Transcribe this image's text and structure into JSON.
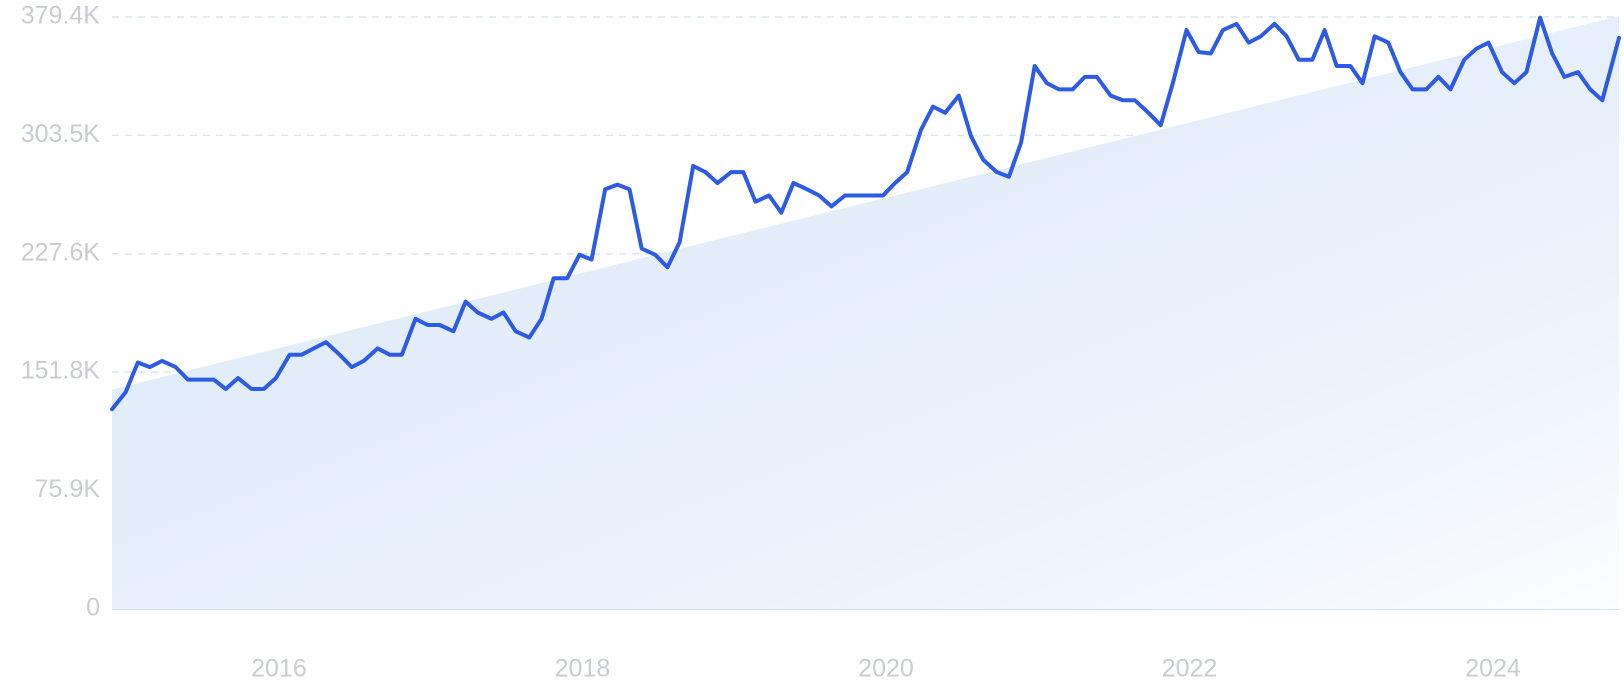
{
  "chart_data": {
    "type": "line",
    "title": "",
    "xlabel": "",
    "ylabel": "",
    "ylim": [
      0,
      379400
    ],
    "xlim": [
      2014.9,
      2024.83
    ],
    "grid": true,
    "y_ticks": [
      {
        "value": 0,
        "label": "0"
      },
      {
        "value": 75900,
        "label": "75.9K"
      },
      {
        "value": 151800,
        "label": "151.8K"
      },
      {
        "value": 227600,
        "label": "227.6K"
      },
      {
        "value": 303500,
        "label": "303.5K"
      },
      {
        "value": 379400,
        "label": "379.4K"
      }
    ],
    "x_ticks": [
      {
        "value": 2016,
        "label": "2016"
      },
      {
        "value": 2018,
        "label": "2018"
      },
      {
        "value": 2020,
        "label": "2020"
      },
      {
        "value": 2022,
        "label": "2022"
      },
      {
        "value": 2024,
        "label": "2024"
      }
    ],
    "trend": {
      "start": [
        2014.9,
        140700
      ],
      "end": [
        2024.83,
        380000
      ]
    },
    "series": [
      {
        "color": "#2d5be3",
        "area_color": "#dbe8f8",
        "points": [
          [
            2014.9,
            128000
          ],
          [
            2014.99,
            139000
          ],
          [
            2015.07,
            158000
          ],
          [
            2015.15,
            155000
          ],
          [
            2015.23,
            159000
          ],
          [
            2015.32,
            155000
          ],
          [
            2015.4,
            147000
          ],
          [
            2015.48,
            147000
          ],
          [
            2015.57,
            147000
          ],
          [
            2015.65,
            141000
          ],
          [
            2015.73,
            148000
          ],
          [
            2015.82,
            141000
          ],
          [
            2015.9,
            141000
          ],
          [
            2015.98,
            148000
          ],
          [
            2016.07,
            163000
          ],
          [
            2016.15,
            163000
          ],
          [
            2016.23,
            167000
          ],
          [
            2016.31,
            171000
          ],
          [
            2016.4,
            163000
          ],
          [
            2016.48,
            155000
          ],
          [
            2016.56,
            159000
          ],
          [
            2016.65,
            167000
          ],
          [
            2016.73,
            163000
          ],
          [
            2016.81,
            163000
          ],
          [
            2016.9,
            186000
          ],
          [
            2016.98,
            182000
          ],
          [
            2017.06,
            182000
          ],
          [
            2017.15,
            178000
          ],
          [
            2017.23,
            197000
          ],
          [
            2017.31,
            190000
          ],
          [
            2017.4,
            186000
          ],
          [
            2017.48,
            190000
          ],
          [
            2017.56,
            178000
          ],
          [
            2017.65,
            174000
          ],
          [
            2017.73,
            186000
          ],
          [
            2017.81,
            212000
          ],
          [
            2017.9,
            212000
          ],
          [
            2017.98,
            227000
          ],
          [
            2018.06,
            224000
          ],
          [
            2018.15,
            269000
          ],
          [
            2018.23,
            272000
          ],
          [
            2018.31,
            269000
          ],
          [
            2018.39,
            231000
          ],
          [
            2018.48,
            227000
          ],
          [
            2018.56,
            219000
          ],
          [
            2018.64,
            235000
          ],
          [
            2018.73,
            284000
          ],
          [
            2018.81,
            280000
          ],
          [
            2018.89,
            273000
          ],
          [
            2018.98,
            280000
          ],
          [
            2019.06,
            280000
          ],
          [
            2019.14,
            261000
          ],
          [
            2019.23,
            265000
          ],
          [
            2019.31,
            254000
          ],
          [
            2019.39,
            273000
          ],
          [
            2019.48,
            269000
          ],
          [
            2019.56,
            265000
          ],
          [
            2019.64,
            258000
          ],
          [
            2019.73,
            265000
          ],
          [
            2019.81,
            265000
          ],
          [
            2019.89,
            265000
          ],
          [
            2019.98,
            265000
          ],
          [
            2020.06,
            273000
          ],
          [
            2020.14,
            280000
          ],
          [
            2020.23,
            307000
          ],
          [
            2020.31,
            322000
          ],
          [
            2020.39,
            318000
          ],
          [
            2020.48,
            329000
          ],
          [
            2020.56,
            303000
          ],
          [
            2020.64,
            288000
          ],
          [
            2020.73,
            280000
          ],
          [
            2020.81,
            277000
          ],
          [
            2020.89,
            299000
          ],
          [
            2020.98,
            348000
          ],
          [
            2021.06,
            337000
          ],
          [
            2021.14,
            333000
          ],
          [
            2021.23,
            333000
          ],
          [
            2021.31,
            341000
          ],
          [
            2021.39,
            341000
          ],
          [
            2021.48,
            329000
          ],
          [
            2021.56,
            326000
          ],
          [
            2021.64,
            326000
          ],
          [
            2021.73,
            318000
          ],
          [
            2021.81,
            310000
          ],
          [
            2021.89,
            337000
          ],
          [
            2021.98,
            371000
          ],
          [
            2022.06,
            357000
          ],
          [
            2022.14,
            356000
          ],
          [
            2022.22,
            371000
          ],
          [
            2022.31,
            375000
          ],
          [
            2022.39,
            363000
          ],
          [
            2022.47,
            367000
          ],
          [
            2022.56,
            375000
          ],
          [
            2022.64,
            367000
          ],
          [
            2022.72,
            352000
          ],
          [
            2022.81,
            352000
          ],
          [
            2022.89,
            371000
          ],
          [
            2022.97,
            348000
          ],
          [
            2023.06,
            348000
          ],
          [
            2023.14,
            337000
          ],
          [
            2023.22,
            367000
          ],
          [
            2023.31,
            363000
          ],
          [
            2023.39,
            344000
          ],
          [
            2023.47,
            333000
          ],
          [
            2023.56,
            333000
          ],
          [
            2023.64,
            341000
          ],
          [
            2023.72,
            333000
          ],
          [
            2023.81,
            352000
          ],
          [
            2023.89,
            359000
          ],
          [
            2023.97,
            363000
          ],
          [
            2024.06,
            344000
          ],
          [
            2024.14,
            337000
          ],
          [
            2024.22,
            344000
          ],
          [
            2024.31,
            379000
          ],
          [
            2024.39,
            356000
          ],
          [
            2024.47,
            341000
          ],
          [
            2024.56,
            344000
          ],
          [
            2024.64,
            333000
          ],
          [
            2024.72,
            326000
          ],
          [
            2024.83,
            366000
          ]
        ]
      }
    ]
  }
}
